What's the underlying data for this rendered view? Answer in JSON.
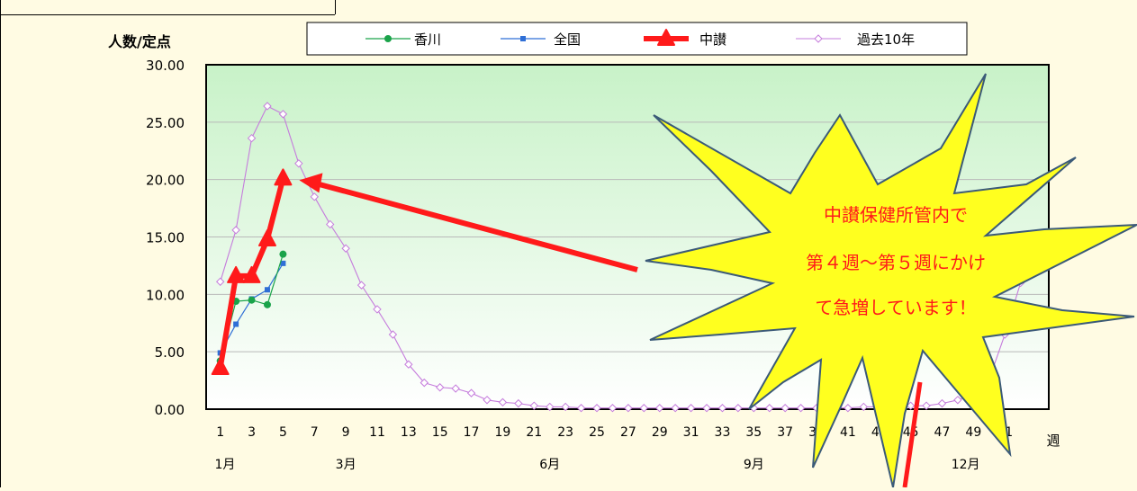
{
  "chart_data": {
    "type": "line",
    "ylabel": "人数/定点",
    "xlabel": "週",
    "ylim": [
      0,
      30
    ],
    "xlim": [
      0.1,
      53.8
    ],
    "y_ticks": [
      "0.00",
      "5.00",
      "10.00",
      "15.00",
      "20.00",
      "25.00",
      "30.00"
    ],
    "x_ticks": [
      "1",
      "3",
      "5",
      "7",
      "9",
      "11",
      "13",
      "15",
      "17",
      "19",
      "21",
      "23",
      "25",
      "27",
      "29",
      "31",
      "33",
      "35",
      "37",
      "39",
      "41",
      "43",
      "45",
      "47",
      "49",
      "51"
    ],
    "months": [
      {
        "label": "1月",
        "week": 1.3
      },
      {
        "label": "3月",
        "week": 9
      },
      {
        "label": "6月",
        "week": 22
      },
      {
        "label": "9月",
        "week": 35
      },
      {
        "label": "12月",
        "week": 48.5
      }
    ],
    "grid": true,
    "legend_position": "top",
    "series": [
      {
        "name": "香川",
        "color": "#1aa34a",
        "x": [
          1,
          2,
          3,
          4,
          5
        ],
        "values": [
          4.2,
          9.4,
          9.5,
          9.1,
          13.5
        ]
      },
      {
        "name": "全国",
        "color": "#2f6fd6",
        "x": [
          1,
          2,
          3,
          4,
          5
        ],
        "values": [
          4.9,
          7.4,
          9.6,
          10.4,
          12.7
        ]
      },
      {
        "name": "中讃",
        "color": "#ff1a1a",
        "x": [
          1,
          2,
          3,
          4,
          5
        ],
        "values": [
          3.6,
          11.6,
          11.6,
          14.8,
          20.1
        ]
      },
      {
        "name": "過去10年",
        "color": "#c57cdc",
        "x": [
          1,
          2,
          3,
          4,
          5,
          6,
          7,
          8,
          9,
          10,
          11,
          12,
          13,
          14,
          15,
          16,
          17,
          18,
          19,
          20,
          21,
          22,
          23,
          24,
          25,
          26,
          27,
          28,
          29,
          30,
          31,
          32,
          33,
          34,
          35,
          36,
          37,
          38,
          39,
          40,
          41,
          42,
          43,
          44,
          45,
          46,
          47,
          48,
          49,
          50,
          51,
          52
        ],
        "values": [
          11.1,
          15.6,
          23.6,
          26.4,
          25.7,
          21.4,
          18.5,
          16.1,
          14.0,
          10.8,
          8.7,
          6.5,
          3.9,
          2.3,
          1.9,
          1.8,
          1.4,
          0.8,
          0.6,
          0.5,
          0.3,
          0.2,
          0.2,
          0.1,
          0.1,
          0.1,
          0.1,
          0.1,
          0.1,
          0.1,
          0.1,
          0.1,
          0.1,
          0.1,
          0.1,
          0.1,
          0.1,
          0.1,
          0.1,
          0.1,
          0.1,
          0.2,
          0.2,
          0.2,
          0.3,
          0.3,
          0.5,
          0.8,
          1.3,
          2.6,
          6.5,
          11.0
        ]
      }
    ],
    "annotation": {
      "lines": [
        "中讃保健所管内で",
        "第４週～第５週にかけ",
        "て急増しています！"
      ]
    }
  }
}
